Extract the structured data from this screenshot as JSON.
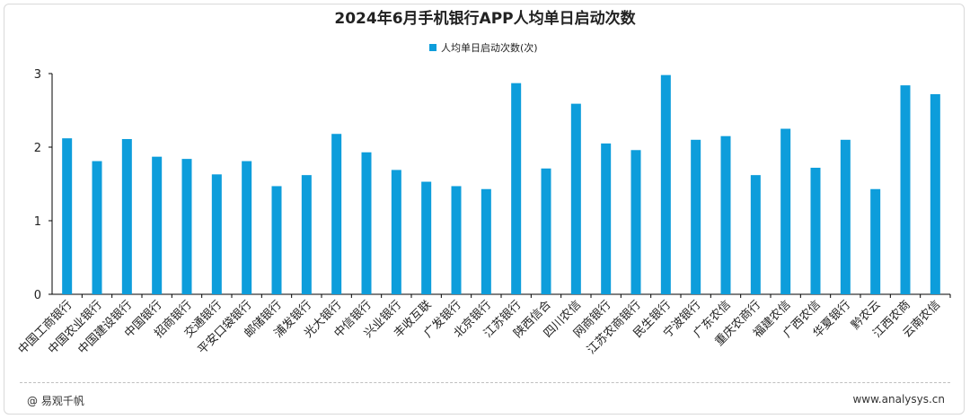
{
  "footer": {
    "source": "@ 易观千帆",
    "site": "www.analysys.cn"
  },
  "colors": {
    "bar": "#0d9ddb",
    "axis": "#000000"
  },
  "chart_data": {
    "type": "bar",
    "title": "2024年6月手机银行APP人均单日启动次数",
    "legend": {
      "label": "人均单日启动次数(次)",
      "position": "top"
    },
    "ylim": [
      0,
      3
    ],
    "yticks": [
      0,
      1,
      2,
      3
    ],
    "grid": false,
    "categories": [
      "中国工商银行",
      "中国农业银行",
      "中国建设银行",
      "中国银行",
      "招商银行",
      "交通银行",
      "平安口袋银行",
      "邮储银行",
      "浦发银行",
      "光大银行",
      "中信银行",
      "兴业银行",
      "丰收互联",
      "广发银行",
      "北京银行",
      "江苏银行",
      "陕西信合",
      "四川农信",
      "网商银行",
      "江苏农商银行",
      "民生银行",
      "宁波银行",
      "广东农信",
      "重庆农商行",
      "福建农信",
      "广西农信",
      "华夏银行",
      "黔农云",
      "江西农商",
      "云南农信"
    ],
    "series": [
      {
        "name": "人均单日启动次数(次)",
        "values": [
          2.12,
          1.81,
          2.11,
          1.87,
          1.84,
          1.63,
          1.81,
          1.47,
          1.62,
          2.18,
          1.93,
          1.69,
          1.53,
          1.47,
          1.43,
          2.87,
          1.71,
          2.59,
          2.05,
          1.96,
          2.98,
          2.1,
          2.15,
          1.62,
          2.25,
          1.72,
          2.1,
          1.43,
          2.84,
          2.72
        ]
      }
    ]
  }
}
